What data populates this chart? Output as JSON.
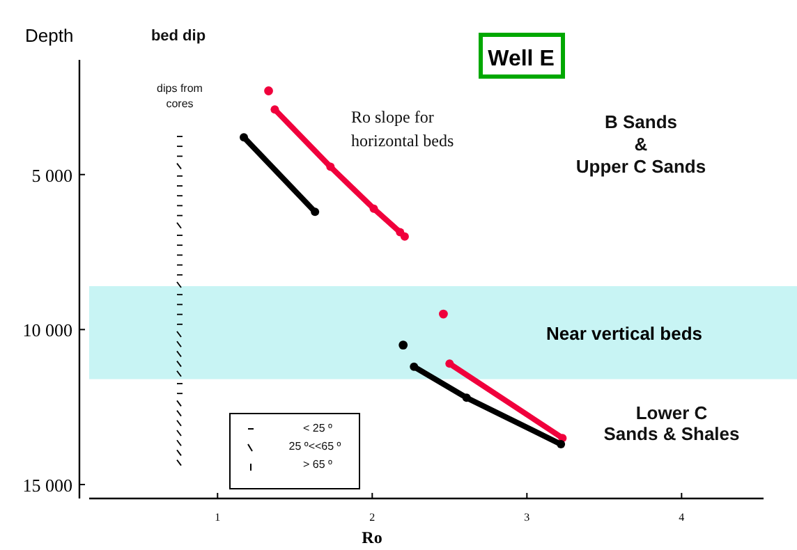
{
  "chart_data": {
    "type": "line",
    "title": "Well E",
    "xlabel": "Ro",
    "ylabel": "Depth",
    "xlim": [
      0.17,
      4.53
    ],
    "ylim": [
      15450,
      1300
    ],
    "xticks": [
      1,
      2,
      3,
      4
    ],
    "yticks": [
      {
        "value": 5000,
        "label": "5 000"
      },
      {
        "value": 10000,
        "label": "10 000"
      },
      {
        "value": 15000,
        "label": "15 000"
      }
    ],
    "grid": false,
    "marker": "circle",
    "line_style": "solid",
    "bands": [
      {
        "axis": "y",
        "from": 8600,
        "to": 11600,
        "label": "Near vertical beds",
        "color": "#c8f4f4"
      }
    ],
    "series": [
      {
        "color": "#f0003c",
        "x": [
          1.37,
          1.73,
          2.01,
          2.18,
          2.21
        ],
        "values": [
          2900,
          4750,
          6100,
          6860,
          7000
        ]
      },
      {
        "color": "#f0003c",
        "x": [
          2.5,
          3.23
        ],
        "values": [
          11100,
          13500
        ]
      },
      {
        "color": "#000000",
        "x": [
          1.17,
          1.63
        ],
        "values": [
          3800,
          6200
        ]
      },
      {
        "color": "#000000",
        "x": [
          2.27,
          2.61,
          3.22
        ],
        "values": [
          11200,
          12200,
          13700
        ]
      },
      {
        "type": "scatter",
        "color": "#f0003c",
        "x": [
          1.33,
          2.46
        ],
        "values": [
          2300,
          9500
        ]
      },
      {
        "type": "scatter",
        "color": "#000000",
        "x": [
          2.2
        ],
        "values": [
          10500
        ]
      }
    ],
    "annotations": [
      "bed dip",
      "dips from\ncores",
      "Ro slope for\nhorizontal beds",
      "B Sands\n&\nUpper C Sands",
      "Lower C\nSands & Shales",
      "< 25 º",
      "25 º<<65 º",
      "> 65 º"
    ]
  }
}
